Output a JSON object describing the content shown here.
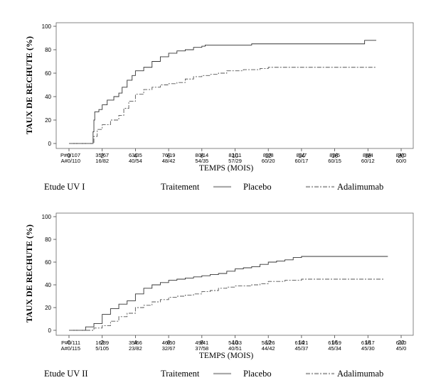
{
  "chart_data": [
    {
      "type": "line",
      "title": "",
      "ylabel": "TAUX DE RECHUTE (%)",
      "xlabel": "TEMPS (MOIS)",
      "xlim": [
        0,
        20
      ],
      "ylim": [
        0,
        100
      ],
      "x_ticks": [
        "0",
        "2",
        "4",
        "6",
        "8",
        "10",
        "12",
        "14",
        "16",
        "18",
        "20"
      ],
      "y_ticks": [
        "0",
        "20",
        "40",
        "60",
        "80",
        "100"
      ],
      "study_label": "Etude UV I",
      "legend_title": "Traitement",
      "series": [
        {
          "name": "Placebo",
          "style": "solid",
          "points": [
            [
              0,
              0
            ],
            [
              1.4,
              0
            ],
            [
              1.45,
              10
            ],
            [
              1.5,
              20
            ],
            [
              1.55,
              27
            ],
            [
              1.8,
              29
            ],
            [
              2,
              33
            ],
            [
              2.3,
              37
            ],
            [
              2.7,
              40
            ],
            [
              3,
              43
            ],
            [
              3.2,
              48
            ],
            [
              3.5,
              54
            ],
            [
              3.8,
              58
            ],
            [
              4,
              62
            ],
            [
              4.5,
              65
            ],
            [
              5,
              70
            ],
            [
              5.5,
              74
            ],
            [
              6,
              77
            ],
            [
              6.5,
              79
            ],
            [
              7,
              80
            ],
            [
              7.5,
              82
            ],
            [
              8,
              83
            ],
            [
              8.2,
              84
            ],
            [
              9,
              84
            ],
            [
              10,
              84
            ],
            [
              11,
              85
            ],
            [
              12,
              85
            ],
            [
              13,
              85
            ],
            [
              14,
              85
            ],
            [
              15,
              85
            ],
            [
              16,
              85
            ],
            [
              17,
              85
            ],
            [
              17.7,
              85
            ],
            [
              17.8,
              88
            ],
            [
              18.5,
              88
            ]
          ]
        },
        {
          "name": "Adalimumab",
          "style": "dashed",
          "points": [
            [
              0,
              0
            ],
            [
              1.4,
              0
            ],
            [
              1.5,
              6
            ],
            [
              1.7,
              12
            ],
            [
              2,
              16
            ],
            [
              2.5,
              20
            ],
            [
              3,
              24
            ],
            [
              3.3,
              30
            ],
            [
              3.6,
              36
            ],
            [
              4,
              42
            ],
            [
              4.5,
              46
            ],
            [
              5,
              48
            ],
            [
              5.5,
              50
            ],
            [
              6,
              51
            ],
            [
              6.5,
              52
            ],
            [
              7,
              55
            ],
            [
              7.5,
              57
            ],
            [
              8,
              58
            ],
            [
              8.5,
              59
            ],
            [
              9,
              60
            ],
            [
              9.5,
              62
            ],
            [
              10,
              62
            ],
            [
              10.5,
              63
            ],
            [
              11,
              63
            ],
            [
              11.5,
              64
            ],
            [
              12,
              65
            ],
            [
              13,
              65
            ],
            [
              14,
              65
            ],
            [
              15,
              65
            ],
            [
              16,
              65
            ],
            [
              17,
              65
            ],
            [
              18,
              65
            ],
            [
              18.5,
              65
            ]
          ]
        }
      ],
      "risk_table": {
        "row_labels": [
          "P#0/107",
          "A#0/110"
        ],
        "placebo": [
          "35/67",
          "63/35",
          "76/19",
          "80/14",
          "82/11",
          "83/8",
          "83/7",
          "83/5",
          "84/4",
          "84/0"
        ],
        "adalimumab": [
          "16/82",
          "40/54",
          "48/42",
          "54/35",
          "57/29",
          "60/20",
          "60/17",
          "60/15",
          "60/12",
          "60/0"
        ]
      }
    },
    {
      "type": "line",
      "title": "",
      "ylabel": "TAUX DE RECHUTE (%)",
      "xlabel": "TEMPS (MOIS)",
      "xlim": [
        0,
        20
      ],
      "ylim": [
        0,
        100
      ],
      "x_ticks": [
        "0",
        "2",
        "4",
        "6",
        "8",
        "10",
        "12",
        "14",
        "16",
        "18",
        "20"
      ],
      "y_ticks": [
        "0",
        "20",
        "40",
        "60",
        "80",
        "100"
      ],
      "study_label": "Etude UV II",
      "legend_title": "Traitement",
      "series": [
        {
          "name": "Placebo",
          "style": "solid",
          "points": [
            [
              0,
              0
            ],
            [
              0.5,
              0
            ],
            [
              1,
              3
            ],
            [
              1.5,
              6
            ],
            [
              2,
              14
            ],
            [
              2.5,
              19
            ],
            [
              3,
              23
            ],
            [
              3.5,
              26
            ],
            [
              4,
              32
            ],
            [
              4.5,
              37
            ],
            [
              5,
              40
            ],
            [
              5.5,
              42
            ],
            [
              6,
              44
            ],
            [
              6.5,
              45
            ],
            [
              7,
              46
            ],
            [
              7.5,
              47
            ],
            [
              8,
              48
            ],
            [
              8.5,
              49
            ],
            [
              9,
              50
            ],
            [
              9.5,
              52
            ],
            [
              10,
              54
            ],
            [
              10.5,
              55
            ],
            [
              11,
              56
            ],
            [
              11.5,
              58
            ],
            [
              12,
              60
            ],
            [
              12.5,
              61
            ],
            [
              13,
              62
            ],
            [
              13.5,
              64
            ],
            [
              14,
              65
            ],
            [
              15,
              65
            ],
            [
              16,
              65
            ],
            [
              17,
              65
            ],
            [
              18,
              65
            ],
            [
              19.2,
              65
            ]
          ]
        },
        {
          "name": "Adalimumab",
          "style": "dashed",
          "points": [
            [
              0,
              0
            ],
            [
              1,
              0
            ],
            [
              1.5,
              2
            ],
            [
              2,
              4
            ],
            [
              2.5,
              8
            ],
            [
              3,
              12
            ],
            [
              3.5,
              15
            ],
            [
              4,
              20
            ],
            [
              4.5,
              22
            ],
            [
              5,
              25
            ],
            [
              5.5,
              27
            ],
            [
              6,
              29
            ],
            [
              6.5,
              30
            ],
            [
              7,
              31
            ],
            [
              7.5,
              32
            ],
            [
              8,
              34
            ],
            [
              8.5,
              35
            ],
            [
              9,
              37
            ],
            [
              9.5,
              38
            ],
            [
              10,
              39
            ],
            [
              11,
              40
            ],
            [
              11.5,
              41
            ],
            [
              12,
              43
            ],
            [
              12.5,
              43
            ],
            [
              13,
              44
            ],
            [
              14,
              45
            ],
            [
              15,
              45
            ],
            [
              16,
              45
            ],
            [
              17,
              45
            ],
            [
              18,
              45
            ],
            [
              19,
              45
            ]
          ]
        }
      ],
      "risk_table": {
        "row_labels": [
          "P#0/111",
          "A#0/115"
        ],
        "placebo": [
          "16/89",
          "35/66",
          "46/50",
          "49/41",
          "54/33",
          "58/26",
          "61/21",
          "61/19",
          "61/17",
          "61/0"
        ],
        "adalimumab": [
          "5/105",
          "23/82",
          "32/67",
          "37/58",
          "40/51",
          "44/42",
          "45/37",
          "45/34",
          "45/30",
          "45/0"
        ]
      }
    }
  ]
}
